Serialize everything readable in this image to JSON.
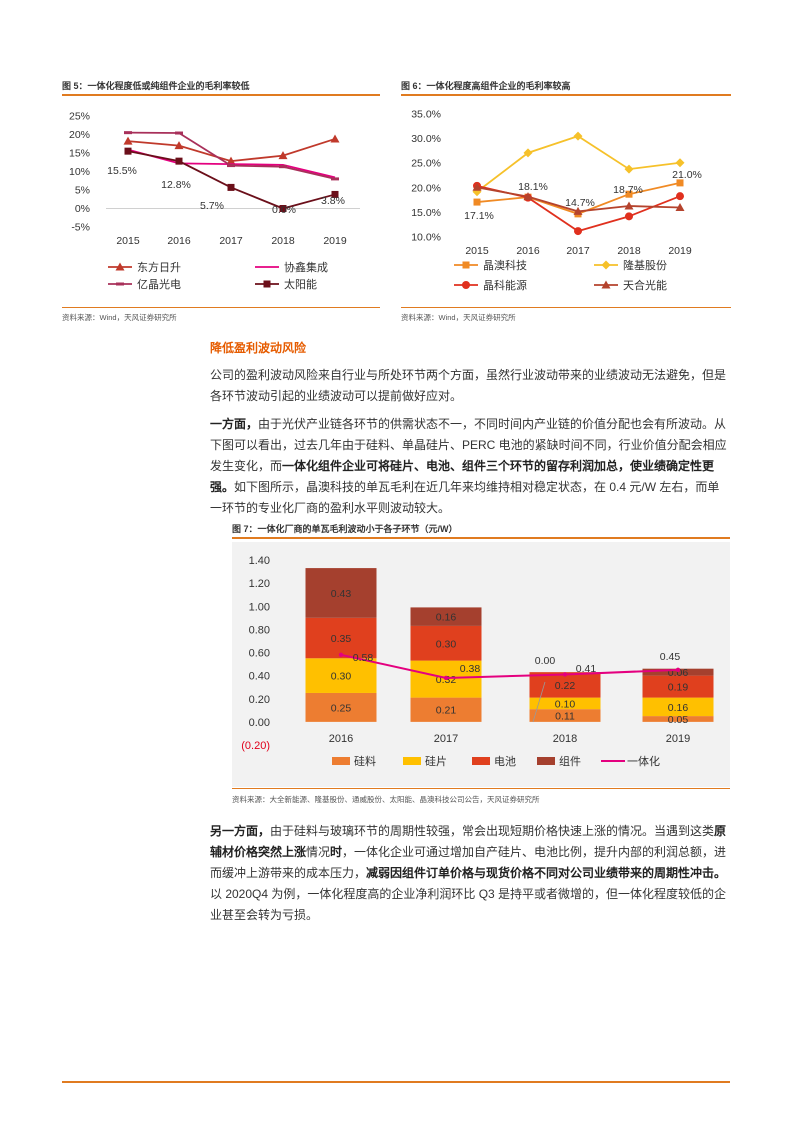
{
  "fig5": {
    "title": "图 5：一体化程度低或纯组件企业的毛利率较低",
    "source": "资料来源：Wind，天风证券研究所",
    "chart_data": {
      "type": "line",
      "x": [
        "2015",
        "2016",
        "2017",
        "2018",
        "2019"
      ],
      "yticks": [
        "25%",
        "20%",
        "15%",
        "10%",
        "5%",
        "0%",
        "-5%"
      ],
      "ylim": [
        -5,
        25
      ],
      "series": [
        {
          "name": "东方日升",
          "color": "#c0392b",
          "marker": "triangle",
          "values": [
            18.2,
            17.0,
            12.8,
            14.3,
            18.8
          ]
        },
        {
          "name": "协鑫集成",
          "color": "#e4007f",
          "marker": "none",
          "values": [
            15.9,
            12.2,
            12.0,
            11.8,
            8.4
          ]
        },
        {
          "name": "亿晶光电",
          "color": "#a8305a",
          "marker": "line",
          "values": [
            20.5,
            20.4,
            11.6,
            11.3,
            8.0
          ]
        },
        {
          "name": "太阳能",
          "color": "#6b0f1a",
          "marker": "square",
          "values": [
            15.5,
            12.8,
            5.7,
            0.0,
            3.8
          ]
        }
      ],
      "data_labels": [
        "15.5%",
        "12.8%",
        "5.7%",
        "0.0%",
        "3.8%"
      ]
    }
  },
  "fig6": {
    "title": "图 6：一体化程度高组件企业的毛利率较高",
    "source": "资料来源：Wind，天风证券研究所",
    "chart_data": {
      "type": "line",
      "x": [
        "2015",
        "2016",
        "2017",
        "2018",
        "2019"
      ],
      "yticks": [
        "35.0%",
        "30.0%",
        "25.0%",
        "20.0%",
        "15.0%",
        "10.0%"
      ],
      "ylim": [
        10,
        35
      ],
      "series": [
        {
          "name": "晶澳科技",
          "color": "#f08a24",
          "marker": "square",
          "values": [
            17.1,
            18.1,
            14.7,
            18.7,
            21.0
          ]
        },
        {
          "name": "隆基股份",
          "color": "#f6c12a",
          "marker": "diamond",
          "values": [
            19.2,
            27.1,
            30.5,
            23.8,
            25.1
          ]
        },
        {
          "name": "晶科能源",
          "color": "#e0301e",
          "marker": "circle",
          "values": [
            20.4,
            18.0,
            11.2,
            14.2,
            18.3
          ]
        },
        {
          "name": "天合光能",
          "color": "#b5432d",
          "marker": "triangle",
          "values": [
            20.1,
            18.2,
            15.2,
            16.3,
            16.0
          ]
        }
      ],
      "data_labels": [
        "17.1%",
        "18.1%",
        "14.7%",
        "18.7%",
        "21.0%"
      ]
    }
  },
  "section": {
    "heading": "降低盈利波动风险",
    "p1": "公司的盈利波动风险来自行业与所处环节两个方面，虽然行业波动带来的业绩波动无法避免，但是各环节波动引起的业绩波动可以提前做好应对。",
    "p2_bold1": "一方面，",
    "p2_a": "由于光伏产业链各环节的供需状态不一，不同时间内产业链的价值分配也会有所波动。从下图可以看出，过去几年由于硅料、单晶硅片、PERC 电池的紧缺时间不同，行业价值分配会相应发生变化，而",
    "p2_bold2": "一体化组件企业可将硅片、电池、组件三个环节的留存利润加总，使业绩确定性更强。",
    "p2_b": "如下图所示，晶澳科技的单瓦毛利在近几年来均维持相对稳定状态，在 0.4 元/W 左右，而单一环节的专业化厂商的盈利水平则波动较大。",
    "p3_bold1": "另一方面，",
    "p3_a": "由于硅料与玻璃环节的周期性较强，常会出现短期价格快速上涨的情况。当遇到这类",
    "p3_bold2": "原辅材价格突然上涨",
    "p3_b": "情况",
    "p3_bold3": "时",
    "p3_c": "，一体化企业可通过增加自产硅片、电池比例，提升内部的利润总额，进而缓冲上游带来的成本压力，",
    "p3_bold4": "减弱因组件订单价格与现货价格不同对公司业绩带来的周期性冲击。",
    "p3_d": "以 2020Q4 为例，一体化程度高的企业净利润环比 Q3 是持平或者微增的，但一体化程度较低的企业甚至会转为亏损。"
  },
  "fig7": {
    "title": "图 7：一体化厂商的单瓦毛利波动小于各子环节（元/W）",
    "source": "资料来源：大全新能源、隆基股份、通威股份、太阳能、晶澳科技公司公告，天风证券研究所",
    "chart_data": {
      "type": "bar",
      "stacked": true,
      "categories": [
        "2016",
        "2017",
        "2018",
        "2019"
      ],
      "yticks": [
        "1.40",
        "1.20",
        "1.00",
        "0.80",
        "0.60",
        "0.40",
        "0.20",
        "0.00",
        "(0.20)"
      ],
      "ylim": [
        -0.2,
        1.4
      ],
      "series": [
        {
          "name": "硅料",
          "color": "#ed7d31",
          "values": [
            0.25,
            0.21,
            0.11,
            0.05
          ]
        },
        {
          "name": "硅片",
          "color": "#ffc000",
          "values": [
            0.3,
            0.32,
            0.1,
            0.16
          ]
        },
        {
          "name": "电池",
          "color": "#e0401e",
          "values": [
            0.35,
            0.3,
            0.22,
            0.19
          ]
        },
        {
          "name": "组件",
          "color": "#a5402e",
          "values": [
            0.43,
            0.16,
            0.0,
            0.06
          ]
        }
      ],
      "bar_labels": [
        [
          "0.25",
          "0.30",
          "0.35",
          "0.43"
        ],
        [
          "0.21",
          "0.32",
          "0.30",
          "0.16"
        ],
        [
          "0.11",
          "0.10",
          "0.22",
          "0.00"
        ],
        [
          "0.05",
          "0.16",
          "0.19",
          "0.06"
        ]
      ],
      "line": {
        "name": "一体化",
        "color": "#e4007f",
        "values": [
          0.58,
          0.38,
          0.41,
          0.45
        ],
        "labels": [
          "0.58",
          "0.38",
          "0.41",
          "0.45"
        ]
      }
    }
  }
}
